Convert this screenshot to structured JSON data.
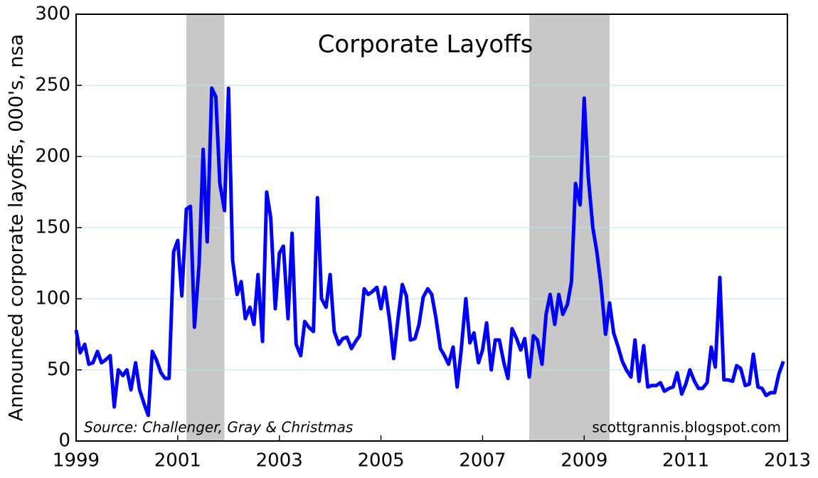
{
  "chart_data": {
    "type": "line",
    "title": "Corporate Layoffs",
    "y_label": "Announced corporate layoffs, 000's, nsa",
    "annotations": [
      "Source: Challenger, Gray & Christmas",
      "scottgrannis.blogspot.com"
    ],
    "xlim": [
      1999,
      2013
    ],
    "xticks": [
      1999,
      2001,
      2003,
      2005,
      2007,
      2009,
      2011,
      2013
    ],
    "ylim": [
      0,
      300
    ],
    "yticks": [
      0,
      50,
      100,
      150,
      200,
      250,
      300
    ],
    "grid": true,
    "shaded_regions": [
      [
        2001.17,
        2001.92
      ],
      [
        2007.92,
        2009.5
      ]
    ],
    "shade_color": "#c8c8c8",
    "x": [
      1999.0,
      1999.08,
      1999.17,
      1999.25,
      1999.33,
      1999.42,
      1999.5,
      1999.58,
      1999.67,
      1999.75,
      1999.83,
      1999.92,
      2000.0,
      2000.08,
      2000.17,
      2000.25,
      2000.33,
      2000.42,
      2000.5,
      2000.58,
      2000.67,
      2000.75,
      2000.83,
      2000.92,
      2001.0,
      2001.08,
      2001.17,
      2001.25,
      2001.33,
      2001.42,
      2001.5,
      2001.58,
      2001.67,
      2001.75,
      2001.83,
      2001.92,
      2002.0,
      2002.08,
      2002.17,
      2002.25,
      2002.33,
      2002.42,
      2002.5,
      2002.58,
      2002.67,
      2002.75,
      2002.83,
      2002.92,
      2003.0,
      2003.08,
      2003.17,
      2003.25,
      2003.33,
      2003.42,
      2003.5,
      2003.58,
      2003.67,
      2003.75,
      2003.83,
      2003.92,
      2004.0,
      2004.08,
      2004.17,
      2004.25,
      2004.33,
      2004.42,
      2004.5,
      2004.58,
      2004.67,
      2004.75,
      2004.83,
      2004.92,
      2005.0,
      2005.08,
      2005.17,
      2005.25,
      2005.33,
      2005.42,
      2005.5,
      2005.58,
      2005.67,
      2005.75,
      2005.83,
      2005.92,
      2006.0,
      2006.08,
      2006.17,
      2006.25,
      2006.33,
      2006.42,
      2006.5,
      2006.58,
      2006.67,
      2006.75,
      2006.83,
      2006.92,
      2007.0,
      2007.08,
      2007.17,
      2007.25,
      2007.33,
      2007.42,
      2007.5,
      2007.58,
      2007.67,
      2007.75,
      2007.83,
      2007.92,
      2008.0,
      2008.08,
      2008.17,
      2008.25,
      2008.33,
      2008.42,
      2008.5,
      2008.58,
      2008.67,
      2008.75,
      2008.83,
      2008.92,
      2009.0,
      2009.08,
      2009.17,
      2009.25,
      2009.33,
      2009.42,
      2009.5,
      2009.58,
      2009.67,
      2009.75,
      2009.83,
      2009.92,
      2010.0,
      2010.08,
      2010.17,
      2010.25,
      2010.33,
      2010.42,
      2010.5,
      2010.58,
      2010.67,
      2010.75,
      2010.83,
      2010.92,
      2011.0,
      2011.08,
      2011.17,
      2011.25,
      2011.33,
      2011.42,
      2011.5,
      2011.58,
      2011.67,
      2011.75,
      2011.83,
      2011.92,
      2012.0,
      2012.08,
      2012.17,
      2012.25,
      2012.33,
      2012.42,
      2012.5,
      2012.58,
      2012.67,
      2012.75,
      2012.83,
      2012.92
    ],
    "series": [
      {
        "name": "Corporate Layoffs",
        "color": "#0000ff",
        "values": [
          78,
          62,
          68,
          54,
          55,
          63,
          55,
          57,
          60,
          24,
          50,
          46,
          50,
          36,
          55,
          36,
          27,
          18,
          63,
          57,
          48,
          44,
          44,
          133,
          141,
          102,
          163,
          165,
          80,
          124,
          205,
          140,
          248,
          242,
          181,
          162,
          248,
          127,
          103,
          112,
          86,
          94,
          82,
          117,
          70,
          175,
          157,
          93,
          132,
          137,
          86,
          146,
          68,
          60,
          84,
          80,
          77,
          171,
          100,
          94,
          117,
          77,
          68,
          72,
          73,
          65,
          70,
          74,
          107,
          103,
          105,
          108,
          93,
          108,
          85,
          58,
          84,
          110,
          102,
          71,
          72,
          82,
          101,
          107,
          103,
          87,
          65,
          60,
          54,
          66,
          38,
          64,
          100,
          69,
          76,
          55,
          64,
          83,
          50,
          71,
          71,
          55,
          44,
          79,
          72,
          64,
          72,
          45,
          74,
          71,
          54,
          89,
          103,
          82,
          103,
          89,
          96,
          112,
          181,
          166,
          241,
          186,
          150,
          133,
          110,
          75,
          97,
          76,
          66,
          56,
          50,
          45,
          71,
          42,
          67,
          38,
          39,
          39,
          41,
          35,
          37,
          38,
          48,
          33,
          40,
          50,
          42,
          37,
          37,
          41,
          66,
          52,
          115,
          43,
          43,
          42,
          53,
          51,
          39,
          40,
          61,
          38,
          37,
          32,
          34,
          34,
          47,
          56
        ]
      }
    ]
  }
}
